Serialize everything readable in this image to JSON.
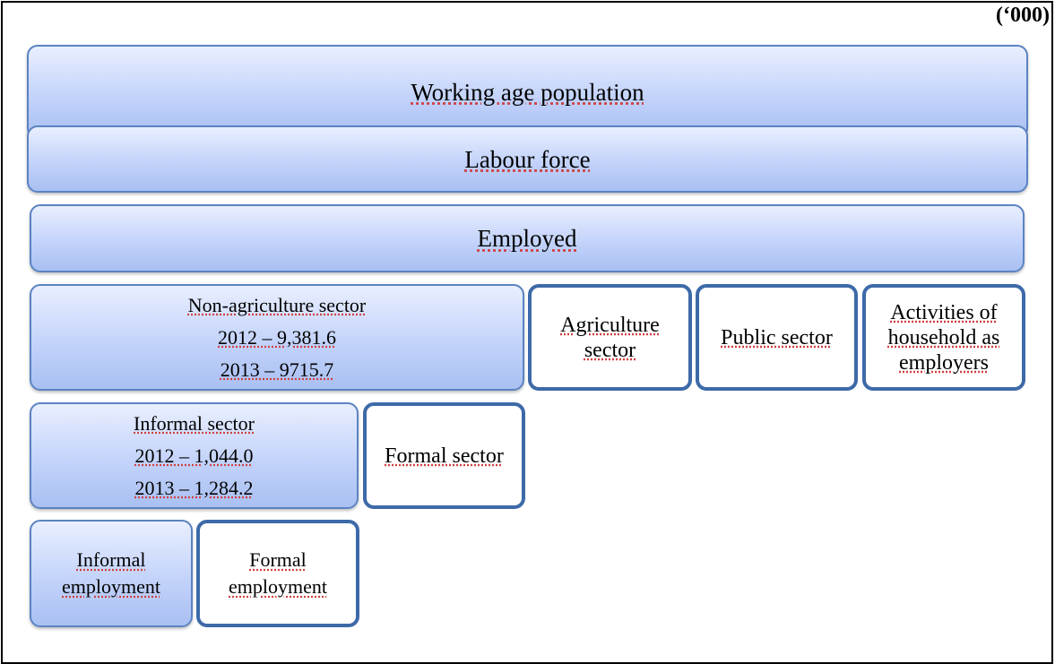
{
  "header": {
    "unit": "(‘000)"
  },
  "nodes": [
    {
      "lines": [
        "Working age population"
      ]
    },
    {
      "lines": [
        "Labour force"
      ]
    },
    {
      "lines": [
        "Employed"
      ]
    },
    {
      "lines": [
        "Non-agriculture sector",
        "2012 – 9,381.6",
        "2013 – 9715.7"
      ]
    },
    {
      "lines": [
        "Agriculture",
        "sector"
      ]
    },
    {
      "lines": [
        "Public sector"
      ]
    },
    {
      "lines": [
        "Activities of",
        "household as",
        "employers"
      ]
    },
    {
      "lines": [
        "Informal sector",
        "2012 – 1,044.0",
        "2013 – 1,284.2"
      ]
    },
    {
      "lines": [
        "Formal sector"
      ]
    },
    {
      "lines": [
        "Informal",
        "employment"
      ]
    },
    {
      "lines": [
        "Formal",
        "employment"
      ]
    }
  ]
}
